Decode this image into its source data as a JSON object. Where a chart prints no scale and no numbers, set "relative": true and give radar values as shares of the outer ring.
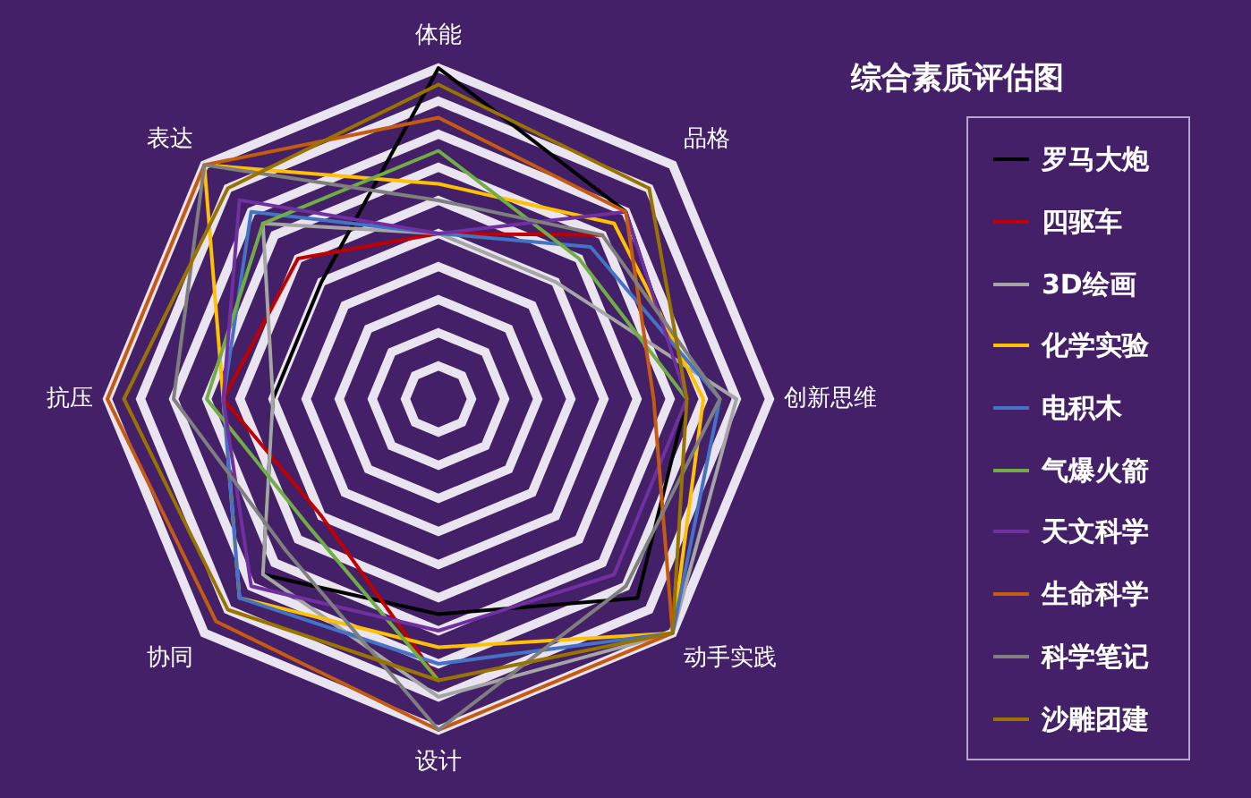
{
  "chart_data": {
    "type": "radar",
    "title": "综合素质评估图",
    "categories": [
      "体能",
      "品格",
      "创新思维",
      "动手实践",
      "设计",
      "协同",
      "抗压",
      "表达"
    ],
    "relative": true,
    "grid": true,
    "legend": "right",
    "marker": "none",
    "series": [
      {
        "name": "罗马大炮",
        "color": "#000000",
        "values": [
          1.0,
          0.8,
          0.75,
          0.85,
          0.65,
          0.75,
          0.5,
          0.5
        ]
      },
      {
        "name": "四驱车",
        "color": "#c00000",
        "values": [
          0.5,
          0.7,
          null,
          null,
          0.85,
          0.5,
          0.65,
          0.6
        ]
      },
      {
        "name": "3D绘画",
        "color": "#a5a5a5",
        "values": [
          0.5,
          0.5,
          0.9,
          1.0,
          0.9,
          0.75,
          0.5,
          0.75
        ]
      },
      {
        "name": "化学实验",
        "color": "#ffc000",
        "values": [
          0.65,
          0.75,
          0.8,
          1.0,
          0.75,
          0.85,
          0.65,
          1.0
        ]
      },
      {
        "name": "电积木",
        "color": "#4472c4",
        "values": [
          0.5,
          0.65,
          0.85,
          1.0,
          0.8,
          0.85,
          0.65,
          0.8
        ]
      },
      {
        "name": "气爆火箭",
        "color": "#70ad47",
        "values": [
          0.75,
          0.6,
          0.75,
          null,
          0.85,
          0.55,
          0.7,
          0.75
        ]
      },
      {
        "name": "天文科学",
        "color": "#7030a0",
        "values": [
          0.5,
          0.8,
          0.75,
          0.75,
          0.7,
          0.8,
          0.65,
          0.85
        ]
      },
      {
        "name": "生命科学",
        "color": "#c55a11",
        "values": [
          0.85,
          0.8,
          0.65,
          1.0,
          1.0,
          0.95,
          1.0,
          1.0
        ]
      },
      {
        "name": "科学笔记",
        "color": "#7f7f7f",
        "values": [
          0.6,
          0.7,
          0.85,
          0.8,
          1.0,
          0.65,
          0.8,
          1.0
        ]
      },
      {
        "name": "沙雕团建",
        "color": "#997300",
        "values": [
          0.95,
          0.9,
          0.75,
          1.0,
          0.85,
          0.9,
          0.95,
          0.9
        ]
      }
    ]
  }
}
